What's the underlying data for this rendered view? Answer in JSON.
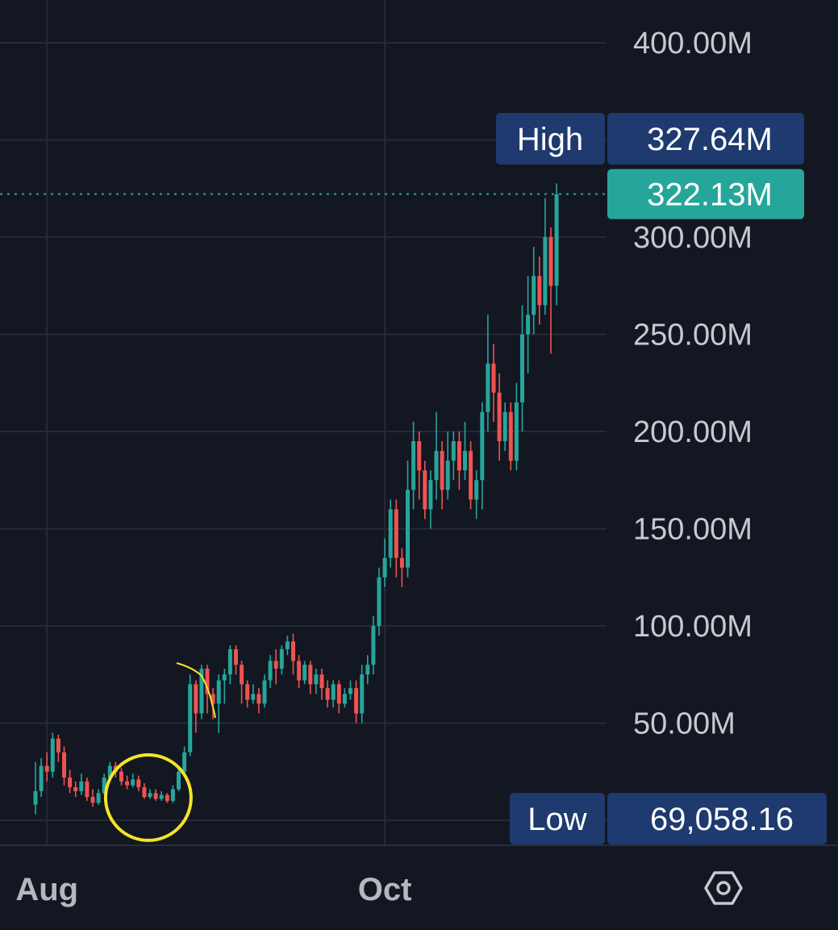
{
  "chart_data": {
    "type": "candlestick",
    "y_ticks": [
      {
        "value": 50000000,
        "label": "50.00M"
      },
      {
        "value": 100000000,
        "label": "100.00M"
      },
      {
        "value": 150000000,
        "label": "150.00M"
      },
      {
        "value": 200000000,
        "label": "200.00M"
      },
      {
        "value": 250000000,
        "label": "250.00M"
      },
      {
        "value": 300000000,
        "label": "300.00M"
      },
      {
        "value": 400000000,
        "label": "400.00M"
      }
    ],
    "x_ticks": [
      {
        "index": 2,
        "label": "Aug"
      },
      {
        "index": 61,
        "label": "Oct"
      }
    ],
    "high": {
      "label": "High",
      "value_label": "327.64M",
      "value": 327640000
    },
    "current": {
      "value_label": "322.13M",
      "value": 322130000
    },
    "low": {
      "label": "Low",
      "value_label": "69,058.16",
      "value": 69058.16
    },
    "grid": true,
    "colors": {
      "up": "#26a69a",
      "down": "#ef5350",
      "background": "#131722",
      "grid": "#262a36",
      "label_box": "#1e3a6e",
      "current_box": "#26a69a",
      "annotation": "#f5e427"
    },
    "annotations": [
      {
        "type": "circle",
        "index": 19,
        "value": 10000000
      }
    ],
    "ohlc": [
      [
        8,
        15,
        30,
        3
      ],
      [
        15,
        28,
        32,
        12
      ],
      [
        28,
        25,
        35,
        20
      ],
      [
        25,
        42,
        45,
        22
      ],
      [
        42,
        35,
        44,
        30
      ],
      [
        35,
        22,
        38,
        18
      ],
      [
        22,
        17,
        26,
        14
      ],
      [
        17,
        15,
        20,
        12
      ],
      [
        15,
        20,
        24,
        13
      ],
      [
        20,
        12,
        22,
        10
      ],
      [
        12,
        9,
        16,
        7
      ],
      [
        9,
        14,
        16,
        8
      ],
      [
        14,
        22,
        24,
        13
      ],
      [
        22,
        28,
        30,
        20
      ],
      [
        28,
        25,
        30,
        22
      ],
      [
        25,
        20,
        27,
        18
      ],
      [
        20,
        18,
        23,
        16
      ],
      [
        18,
        21,
        24,
        17
      ],
      [
        21,
        17,
        23,
        15
      ],
      [
        17,
        12,
        19,
        11
      ],
      [
        12,
        14,
        16,
        11
      ],
      [
        14,
        11,
        16,
        10
      ],
      [
        11,
        13,
        15,
        10
      ],
      [
        13,
        10,
        14,
        9
      ],
      [
        10,
        16,
        18,
        9
      ],
      [
        16,
        25,
        28,
        15
      ],
      [
        25,
        35,
        38,
        24
      ],
      [
        35,
        70,
        75,
        33
      ],
      [
        70,
        55,
        72,
        45
      ],
      [
        55,
        78,
        80,
        52
      ],
      [
        78,
        65,
        80,
        55
      ],
      [
        65,
        60,
        68,
        52
      ],
      [
        60,
        72,
        75,
        45
      ],
      [
        72,
        75,
        78,
        60
      ],
      [
        75,
        88,
        90,
        70
      ],
      [
        88,
        80,
        90,
        75
      ],
      [
        80,
        70,
        82,
        60
      ],
      [
        70,
        62,
        72,
        58
      ],
      [
        62,
        65,
        70,
        60
      ],
      [
        65,
        60,
        68,
        55
      ],
      [
        60,
        72,
        75,
        58
      ],
      [
        72,
        82,
        85,
        68
      ],
      [
        82,
        78,
        88,
        70
      ],
      [
        78,
        88,
        90,
        75
      ],
      [
        88,
        92,
        95,
        85
      ],
      [
        92,
        82,
        96,
        75
      ],
      [
        82,
        72,
        85,
        68
      ],
      [
        72,
        80,
        82,
        70
      ],
      [
        80,
        70,
        82,
        65
      ],
      [
        70,
        75,
        78,
        65
      ],
      [
        75,
        68,
        78,
        62
      ],
      [
        68,
        62,
        72,
        58
      ],
      [
        62,
        70,
        72,
        58
      ],
      [
        70,
        60,
        72,
        55
      ],
      [
        60,
        65,
        68,
        58
      ],
      [
        65,
        68,
        72,
        62
      ],
      [
        68,
        55,
        72,
        50
      ],
      [
        55,
        75,
        80,
        50
      ],
      [
        75,
        80,
        85,
        70
      ],
      [
        80,
        100,
        105,
        75
      ],
      [
        100,
        125,
        130,
        95
      ],
      [
        125,
        135,
        145,
        120
      ],
      [
        135,
        160,
        165,
        130
      ],
      [
        160,
        135,
        165,
        125
      ],
      [
        135,
        130,
        140,
        120
      ],
      [
        130,
        170,
        185,
        125
      ],
      [
        170,
        195,
        205,
        160
      ],
      [
        195,
        180,
        200,
        165
      ],
      [
        180,
        160,
        185,
        155
      ],
      [
        160,
        175,
        180,
        150
      ],
      [
        175,
        190,
        210,
        165
      ],
      [
        190,
        170,
        195,
        160
      ],
      [
        170,
        185,
        200,
        165
      ],
      [
        185,
        195,
        200,
        175
      ],
      [
        195,
        180,
        200,
        170
      ],
      [
        180,
        190,
        205,
        175
      ],
      [
        190,
        165,
        195,
        160
      ],
      [
        165,
        175,
        180,
        155
      ],
      [
        175,
        210,
        215,
        160
      ],
      [
        210,
        235,
        260,
        200
      ],
      [
        235,
        220,
        245,
        205
      ],
      [
        220,
        195,
        230,
        185
      ],
      [
        195,
        210,
        215,
        190
      ],
      [
        210,
        185,
        215,
        180
      ],
      [
        185,
        215,
        225,
        180
      ],
      [
        215,
        250,
        265,
        200
      ],
      [
        250,
        260,
        280,
        230
      ],
      [
        260,
        280,
        295,
        250
      ],
      [
        280,
        265,
        290,
        255
      ],
      [
        265,
        300,
        320,
        260
      ],
      [
        300,
        275,
        305,
        240
      ],
      [
        275,
        322,
        327.64,
        265
      ]
    ]
  }
}
